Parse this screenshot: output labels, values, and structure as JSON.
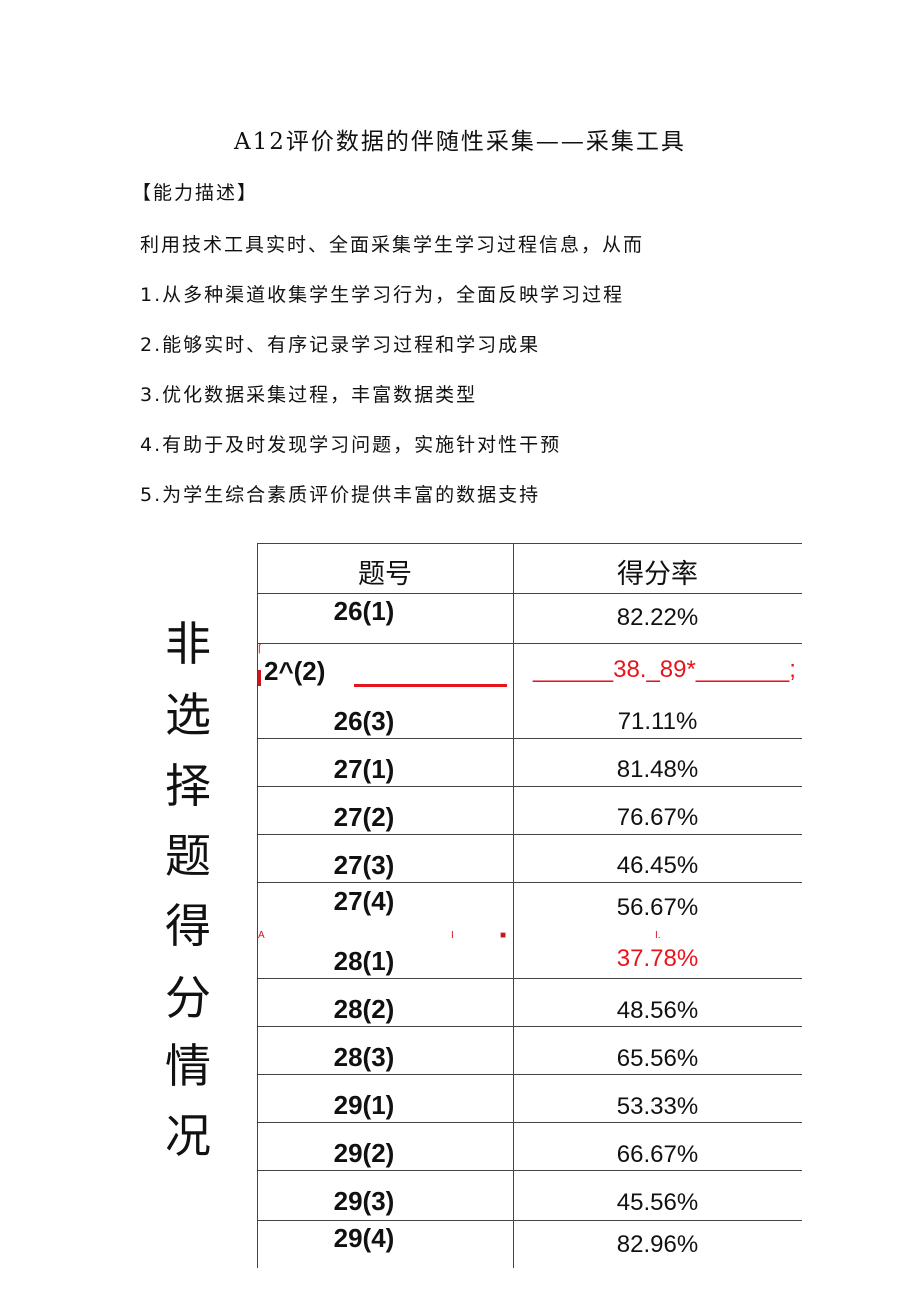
{
  "title": "A12评价数据的伴随性采集——采集工具",
  "section_heading": "【能力描述】",
  "intro": "利用技术工具实时、全面采集学生学习过程信息，从而",
  "items": [
    "1.从多种渠道收集学生学习行为，全面反映学习过程",
    "2.能够实时、有序记录学习过程和学习成果",
    "3.优化数据采集过程，丰富数据类型",
    "4.有助于及时发现学习问题，实施针对性干预",
    "5.为学生综合素质评价提供丰富的数据支持"
  ],
  "side_label": [
    "非",
    "选",
    "择",
    "题",
    "得",
    "分",
    "情",
    "况"
  ],
  "table": {
    "headers": [
      "题号",
      "得分率"
    ],
    "rows": [
      {
        "q": "26(1)",
        "rate": "82.22%"
      },
      {
        "q": "2^(2)",
        "rate": "38._89*",
        "highlight": true
      },
      {
        "q": "26(3)",
        "rate": "71.11%"
      },
      {
        "q": "27(1)",
        "rate": "81.48%"
      },
      {
        "q": "27(2)",
        "rate": "76.67%"
      },
      {
        "q": "27(3)",
        "rate": "46.45%"
      },
      {
        "q": "27(4)",
        "rate": "56.67%"
      },
      {
        "q": "28(1)",
        "rate": "37.78%",
        "highlight": true
      },
      {
        "q": "28(2)",
        "rate": "48.56%"
      },
      {
        "q": "28(3)",
        "rate": "65.56%"
      },
      {
        "q": "29(1)",
        "rate": "53.33%"
      },
      {
        "q": "29(2)",
        "rate": "66.67%"
      },
      {
        "q": "29(3)",
        "rate": "45.56%"
      },
      {
        "q": "29(4)",
        "rate": "82.96%"
      }
    ]
  },
  "highlight_color": "#e8141c"
}
